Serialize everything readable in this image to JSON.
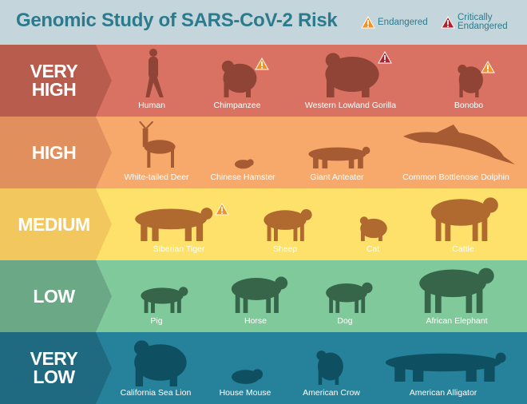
{
  "title": "Genomic Study of SARS-CoV-2 Risk",
  "legend": [
    {
      "label": "Endangered",
      "icon": "warning-triangle-icon",
      "color": "#f5911e"
    },
    {
      "label_line1": "Critically",
      "label_line2": "Endangered",
      "icon": "warning-triangle-icon",
      "color": "#b5202e"
    }
  ],
  "rows": [
    {
      "level_line1": "VERY",
      "level_line2": "HIGH",
      "colors": {
        "band": "#b85c4e",
        "bg": "#d97262",
        "silhouette": "#8f4436"
      },
      "animals": [
        {
          "name": "Human",
          "status": ""
        },
        {
          "name": "Chimpanzee",
          "status": "endangered"
        },
        {
          "name": "Western Lowland Gorilla",
          "status": "critically-endangered"
        },
        {
          "name": "Bonobo",
          "status": "endangered"
        }
      ]
    },
    {
      "level_line1": "HIGH",
      "level_line2": "",
      "colors": {
        "band": "#e28f5e",
        "bg": "#f7a96b",
        "silhouette": "#a65b32"
      },
      "animals": [
        {
          "name": "White-tailed Deer",
          "status": ""
        },
        {
          "name": "Chinese Hamster",
          "status": ""
        },
        {
          "name": "Giant Anteater",
          "status": ""
        },
        {
          "name": "Common Bottlenose Dolphin",
          "status": ""
        }
      ]
    },
    {
      "level_line1": "MEDIUM",
      "level_line2": "",
      "colors": {
        "band": "#f2c75d",
        "bg": "#fde16b",
        "silhouette": "#b0692f"
      },
      "animals": [
        {
          "name": "Siberian Tiger",
          "status": "endangered"
        },
        {
          "name": "Sheep",
          "status": ""
        },
        {
          "name": "Cat",
          "status": ""
        },
        {
          "name": "Cattle",
          "status": ""
        }
      ]
    },
    {
      "level_line1": "LOW",
      "level_line2": "",
      "colors": {
        "band": "#6aa886",
        "bg": "#80c99b",
        "silhouette": "#36654a"
      },
      "animals": [
        {
          "name": "Pig",
          "status": ""
        },
        {
          "name": "Horse",
          "status": ""
        },
        {
          "name": "Dog",
          "status": ""
        },
        {
          "name": "African Elephant",
          "status": ""
        }
      ]
    },
    {
      "level_line1": "VERY",
      "level_line2": "LOW",
      "colors": {
        "band": "#1f6a80",
        "bg": "#26829a",
        "silhouette": "#0e5061"
      },
      "animals": [
        {
          "name": "California Sea Lion",
          "status": ""
        },
        {
          "name": "House Mouse",
          "status": ""
        },
        {
          "name": "American Crow",
          "status": ""
        },
        {
          "name": "American Alligator",
          "status": ""
        }
      ]
    }
  ]
}
